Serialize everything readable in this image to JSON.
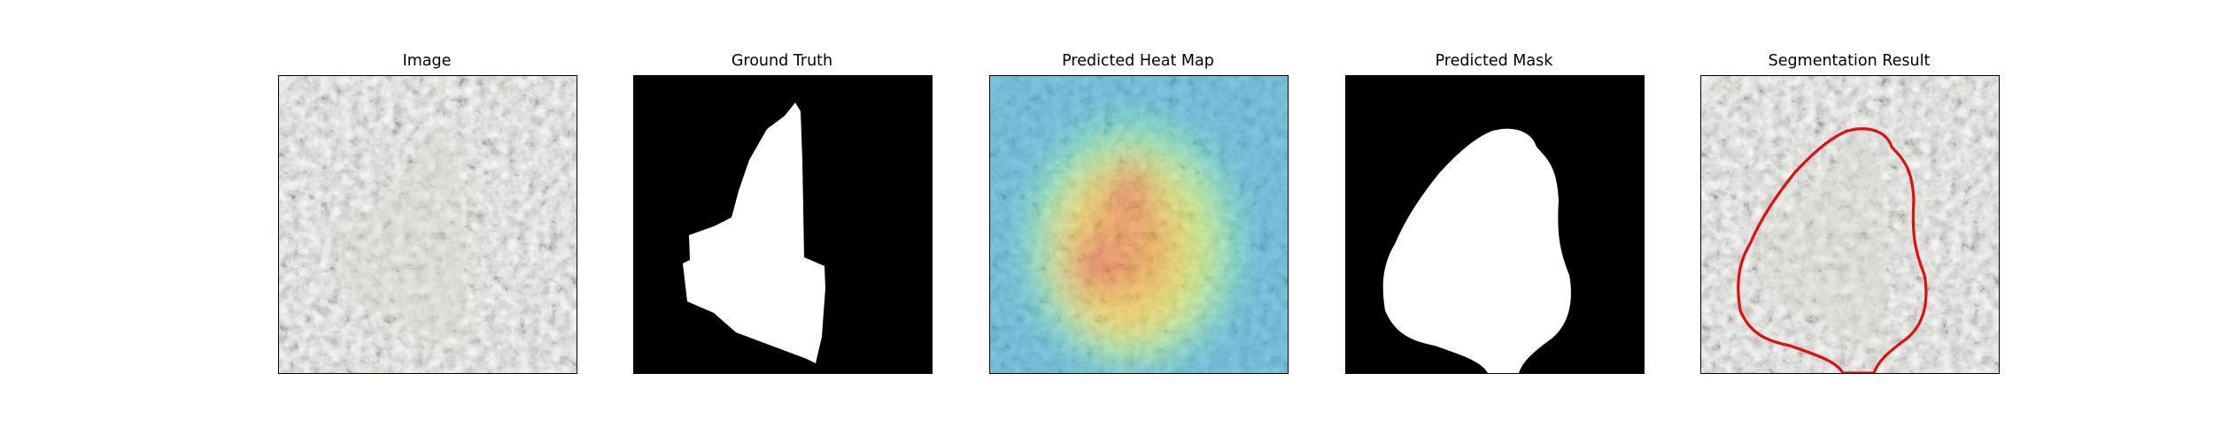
{
  "figure": {
    "panels": [
      {
        "title": "Image",
        "content": "granite-texture-with-pale-fragment"
      },
      {
        "title": "Ground Truth",
        "content": "binary-mask-white-on-black"
      },
      {
        "title": "Predicted Heat Map",
        "content": "jet-colormap-heatmap-overlay"
      },
      {
        "title": "Predicted Mask",
        "content": "binary-mask-white-on-black"
      },
      {
        "title": "Segmentation Result",
        "content": "image-with-red-contour"
      }
    ]
  },
  "colors": {
    "mask_foreground": "#ffffff",
    "mask_background": "#000000",
    "contour": "#dd1111",
    "texture_light": "#9a9a90",
    "texture_dark": "#2e2e2e"
  }
}
